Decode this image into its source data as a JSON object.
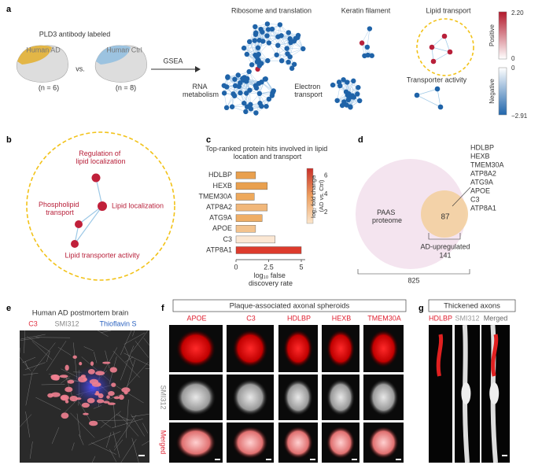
{
  "panel_labels": [
    "a",
    "b",
    "c",
    "d",
    "e",
    "f",
    "g"
  ],
  "a": {
    "cohort_title": "PLD3 antibody labeled",
    "group_ad": "Human AD",
    "vs": "vs.",
    "group_ctrl": "Human Ctrl",
    "n_ad": "(n = 6)",
    "n_ctrl": "(n = 8)",
    "method": "GSEA",
    "clusters": [
      "Ribosome and translation",
      "Keratin filament",
      "Lipid transport",
      "RNA metabolism",
      "Electron transport",
      "Transporter activity"
    ],
    "colorbar": {
      "top": "2.20",
      "zero_pos": "0",
      "zero_neg": "0",
      "bottom": "−2.91",
      "pos_label": "Positive",
      "neg_label": "Negative"
    }
  },
  "b": {
    "nodes": [
      "Regulation of lipid localization",
      "Lipid localization",
      "Phospholipid transport",
      "Lipid transporter activity"
    ]
  },
  "chart_data": {
    "type": "bar",
    "orientation": "horizontal",
    "title": "Top-ranked protein hits involved in lipid location and transport",
    "categories": [
      "HDLBP",
      "HEXB",
      "TMEM30A",
      "ATP8A2",
      "ATG9A",
      "APOE",
      "C3",
      "ATP8A1"
    ],
    "values": [
      1.5,
      2.4,
      1.4,
      2.4,
      2.0,
      1.5,
      3.0,
      5.0
    ],
    "colors": [
      "#e9a04e",
      "#e9a04e",
      "#eea95c",
      "#f1b77a",
      "#efae66",
      "#f3c38e",
      "#fbe7d3",
      "#dd3b2c"
    ],
    "xlim": [
      0,
      5.3
    ],
    "xticks": [
      0,
      2.5,
      5
    ],
    "xlabel": "log₁₀ false discovery rate",
    "colorbar": {
      "label": "log₂ fold change (AD vs. Ctrl)",
      "lim": [
        0.8,
        6.8
      ],
      "ticks": [
        2,
        4,
        6
      ]
    }
  },
  "d": {
    "big_set": "PAAS proteome",
    "big_count": "825",
    "small_set": "AD-upregulated",
    "small_count": "141",
    "overlap": "87",
    "genes": [
      "HDLBP",
      "HEXB",
      "TMEM30A",
      "ATP8A2",
      "ATG9A",
      "APOE",
      "C3",
      "ATP8A1"
    ]
  },
  "e": {
    "title": "Human AD postmortem brain",
    "channels": [
      "C3",
      "SMI312",
      "Thioflavin S"
    ]
  },
  "f": {
    "title": "Plaque-associated axonal spheroids",
    "columns": [
      "APOE",
      "C3",
      "HDLBP",
      "HEXB",
      "TMEM30A"
    ],
    "rows": [
      "SMI312",
      "Merged"
    ]
  },
  "g": {
    "title": "Thickened axons",
    "columns": [
      "HDLBP",
      "SMI312",
      "Merged"
    ]
  }
}
